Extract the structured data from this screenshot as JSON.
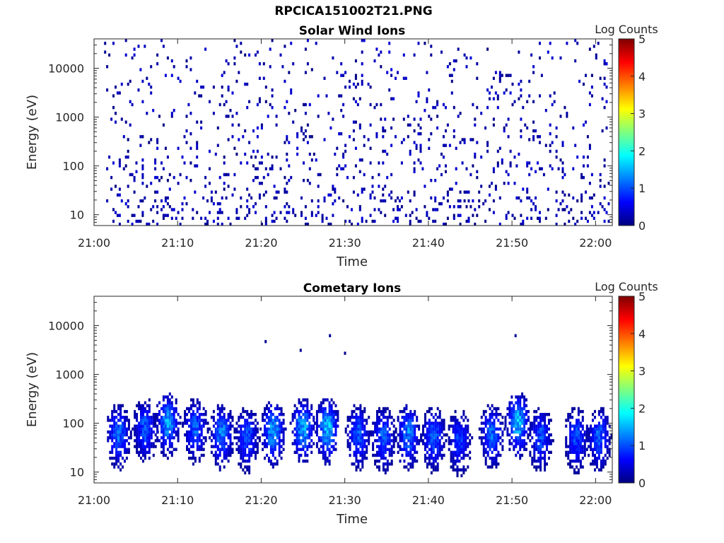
{
  "figure": {
    "suptitle": "RPCICA151002T21.PNG"
  },
  "colormap": {
    "name": "jet",
    "stops": [
      "#00007f",
      "#0000ff",
      "#007fff",
      "#00ffff",
      "#7fff7f",
      "#ffff00",
      "#ff7f00",
      "#ff0000",
      "#7f0000"
    ]
  },
  "chart_data": [
    {
      "type": "heatmap",
      "title": "Solar Wind Ions",
      "xlabel": "Time",
      "ylabel": "Energy (eV)",
      "colorbar_label": "Log Counts",
      "x_ticks": [
        "21:00",
        "21:10",
        "21:20",
        "21:30",
        "21:40",
        "21:50",
        "22:00"
      ],
      "x_range_minutes": [
        0,
        62
      ],
      "y_ticks": [
        "10",
        "100",
        "1000",
        "10000"
      ],
      "y_scale": "log",
      "y_range": [
        6,
        40000
      ],
      "colorbar_ticks": [
        "0",
        "1",
        "2",
        "3",
        "4",
        "5"
      ],
      "color_range": [
        0,
        5
      ],
      "description_values": {
        "dominant_level": 0,
        "max_level_observed": 0.5,
        "data_start_minute": 1.2,
        "data_end_minute": 61.6
      }
    },
    {
      "type": "heatmap",
      "title": "Cometary Ions",
      "xlabel": "Time",
      "ylabel": "Energy (eV)",
      "colorbar_label": "Log Counts",
      "x_ticks": [
        "21:00",
        "21:10",
        "21:20",
        "21:30",
        "21:40",
        "21:50",
        "22:00"
      ],
      "x_range_minutes": [
        0,
        62
      ],
      "y_ticks": [
        "10",
        "100",
        "1000",
        "10000"
      ],
      "y_scale": "log",
      "y_range": [
        6,
        40000
      ],
      "colorbar_ticks": [
        "0",
        "1",
        "2",
        "3",
        "4",
        "5"
      ],
      "color_range": [
        0,
        5
      ],
      "bursts": [
        {
          "t": 2.8,
          "peak_eV": 70,
          "max_level": 1.4
        },
        {
          "t": 6.0,
          "peak_eV": 90,
          "max_level": 1.3
        },
        {
          "t": 8.7,
          "peak_eV": 110,
          "max_level": 1.7
        },
        {
          "t": 12.0,
          "peak_eV": 90,
          "max_level": 1.3
        },
        {
          "t": 15.2,
          "peak_eV": 70,
          "max_level": 1.5
        },
        {
          "t": 18.2,
          "peak_eV": 60,
          "max_level": 1.2
        },
        {
          "t": 21.3,
          "peak_eV": 80,
          "max_level": 1.8
        },
        {
          "t": 24.9,
          "peak_eV": 90,
          "max_level": 1.8
        },
        {
          "t": 27.8,
          "peak_eV": 90,
          "max_level": 1.9
        },
        {
          "t": 31.5,
          "peak_eV": 70,
          "max_level": 1.3
        },
        {
          "t": 34.5,
          "peak_eV": 60,
          "max_level": 1.3
        },
        {
          "t": 37.5,
          "peak_eV": 70,
          "max_level": 1.5
        },
        {
          "t": 40.5,
          "peak_eV": 60,
          "max_level": 1.3
        },
        {
          "t": 43.6,
          "peak_eV": 50,
          "max_level": 1.1
        },
        {
          "t": 47.5,
          "peak_eV": 70,
          "max_level": 1.4
        },
        {
          "t": 50.6,
          "peak_eV": 110,
          "max_level": 1.9
        },
        {
          "t": 53.3,
          "peak_eV": 60,
          "max_level": 1.2
        },
        {
          "t": 57.6,
          "peak_eV": 60,
          "max_level": 1.2
        },
        {
          "t": 60.3,
          "peak_eV": 60,
          "max_level": 1.3
        }
      ],
      "isolated_points": [
        {
          "t": 20.4,
          "eV": 4500
        },
        {
          "t": 24.6,
          "eV": 3300
        },
        {
          "t": 28.1,
          "eV": 6300
        },
        {
          "t": 29.9,
          "eV": 2600
        },
        {
          "t": 50.3,
          "eV": 6300
        }
      ]
    }
  ]
}
